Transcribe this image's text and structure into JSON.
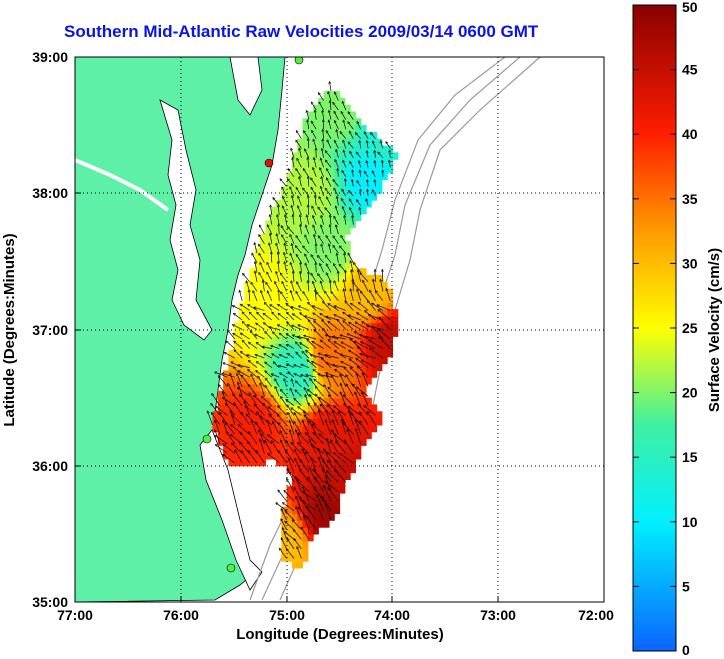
{
  "title": "Southern Mid-Atlantic Raw Velocities 2009/03/14 0600 GMT",
  "axes": {
    "xlabel": "Longitude (Degrees:Minutes)",
    "ylabel": "Latitude (Degrees:Minutes)",
    "x_ticks": [
      "77:00",
      "76:00",
      "75:00",
      "74:00",
      "73:00",
      "72:00"
    ],
    "y_ticks": [
      "39:00",
      "38:00",
      "37:00",
      "36:00",
      "35:00"
    ],
    "x_range": [
      -77,
      -72
    ],
    "y_range": [
      35,
      39
    ]
  },
  "colorbar": {
    "label": "Surface Velocity (cm/s)",
    "min": 0,
    "max": 50,
    "ticks": [
      "0",
      "5",
      "10",
      "15",
      "20",
      "25",
      "30",
      "35",
      "40",
      "45",
      "50"
    ]
  },
  "colors": {
    "land": "#5ff0a8",
    "title": "#0a14e6",
    "bathymetry": "#9a9a9a"
  },
  "chart_data": {
    "type": "heatmap",
    "grid": true,
    "field": [
      {
        "lon": -74.1,
        "lat": 38.4,
        "speed": 14
      },
      {
        "lon": -74.2,
        "lat": 38.1,
        "speed": 10
      },
      {
        "lon": -74.5,
        "lat": 38.6,
        "speed": 20
      },
      {
        "lon": -74.8,
        "lat": 38.0,
        "speed": 22
      },
      {
        "lon": -74.6,
        "lat": 37.6,
        "speed": 20
      },
      {
        "lon": -74.2,
        "lat": 37.3,
        "speed": 30
      },
      {
        "lon": -74.0,
        "lat": 36.9,
        "speed": 45
      },
      {
        "lon": -74.6,
        "lat": 36.8,
        "speed": 35
      },
      {
        "lon": -74.9,
        "lat": 36.7,
        "speed": 15
      },
      {
        "lon": -75.2,
        "lat": 37.2,
        "speed": 25
      },
      {
        "lon": -75.3,
        "lat": 36.3,
        "speed": 40
      },
      {
        "lon": -74.6,
        "lat": 36.2,
        "speed": 42
      },
      {
        "lon": -74.4,
        "lat": 35.9,
        "speed": 45
      },
      {
        "lon": -74.6,
        "lat": 35.6,
        "speed": 48
      },
      {
        "lon": -75.0,
        "lat": 35.4,
        "speed": 30
      }
    ]
  }
}
